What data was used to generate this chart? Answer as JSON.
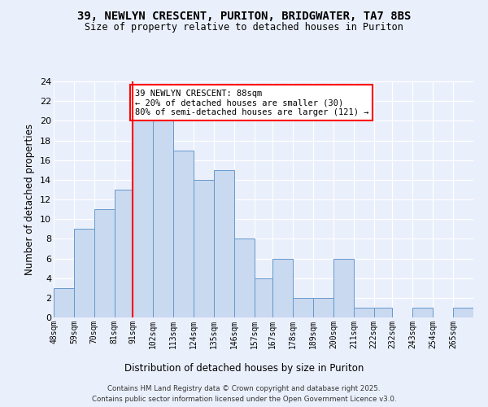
{
  "title_line1": "39, NEWLYN CRESCENT, PURITON, BRIDGWATER, TA7 8BS",
  "title_line2": "Size of property relative to detached houses in Puriton",
  "xlabel": "Distribution of detached houses by size in Puriton",
  "ylabel": "Number of detached properties",
  "bins": [
    48,
    59,
    70,
    81,
    91,
    102,
    113,
    124,
    135,
    146,
    157,
    167,
    178,
    189,
    200,
    211,
    222,
    232,
    243,
    254,
    265
  ],
  "bin_labels": [
    "48sqm",
    "59sqm",
    "70sqm",
    "81sqm",
    "91sqm",
    "102sqm",
    "113sqm",
    "124sqm",
    "135sqm",
    "146sqm",
    "157sqm",
    "167sqm",
    "178sqm",
    "189sqm",
    "200sqm",
    "211sqm",
    "222sqm",
    "232sqm",
    "243sqm",
    "254sqm",
    "265sqm"
  ],
  "values": [
    3,
    9,
    11,
    13,
    20,
    20,
    17,
    14,
    15,
    8,
    4,
    6,
    2,
    2,
    6,
    1,
    1,
    0,
    1,
    0,
    1
  ],
  "bar_color": "#c9d9f0",
  "bar_edge_color": "#6699cc",
  "vline_x": 91,
  "vline_color": "red",
  "annotation_text": "39 NEWLYN CRESCENT: 88sqm\n← 20% of detached houses are smaller (30)\n80% of semi-detached houses are larger (121) →",
  "annotation_box_color": "white",
  "annotation_box_edge": "red",
  "ylim": [
    0,
    24
  ],
  "yticks": [
    0,
    2,
    4,
    6,
    8,
    10,
    12,
    14,
    16,
    18,
    20,
    22,
    24
  ],
  "background_color": "#eaf0fb",
  "grid_color": "#ffffff",
  "footer_line1": "Contains HM Land Registry data © Crown copyright and database right 2025.",
  "footer_line2": "Contains public sector information licensed under the Open Government Licence v3.0."
}
